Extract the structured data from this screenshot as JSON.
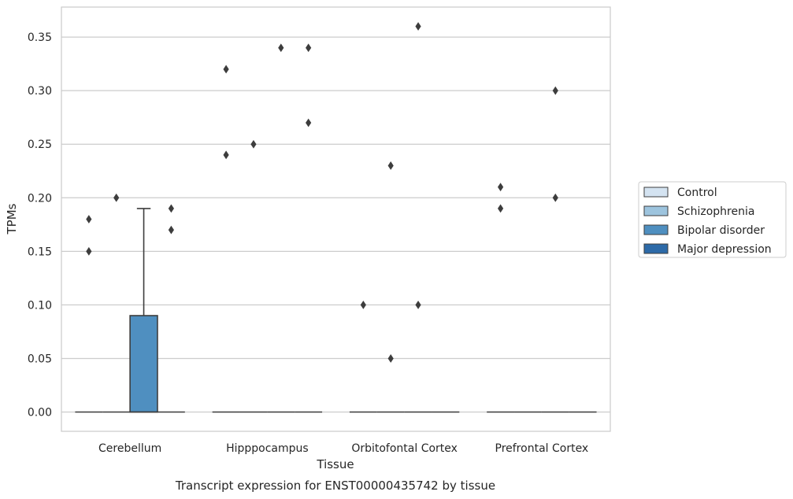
{
  "caption": "Transcript expression for ENST00000435742 by tissue",
  "chart_data": {
    "type": "box",
    "title": "",
    "xlabel": "Tissue",
    "ylabel": "TPMs",
    "ylim": [
      -0.018,
      0.378
    ],
    "yticks": [
      0.0,
      0.05,
      0.1,
      0.15,
      0.2,
      0.25,
      0.3,
      0.35
    ],
    "ytick_labels": [
      "0.00",
      "0.05",
      "0.10",
      "0.15",
      "0.20",
      "0.25",
      "0.30",
      "0.35"
    ],
    "grid": true,
    "legend_position": "right",
    "categories": [
      "Cerebellum",
      "Hipppocampus",
      "Orbitofontal Cortex",
      "Prefrontal Cortex"
    ],
    "series": [
      {
        "name": "Control",
        "color": "#d4e3f1",
        "boxes": [
          {
            "category": "Cerebellum",
            "q1": 0,
            "median": 0,
            "q3": 0,
            "whisker_low": 0,
            "whisker_high": 0,
            "outliers": [
              0.15,
              0.18
            ]
          },
          {
            "category": "Hipppocampus",
            "q1": 0,
            "median": 0,
            "q3": 0,
            "whisker_low": 0,
            "whisker_high": 0,
            "outliers": [
              0.24,
              0.32
            ]
          },
          {
            "category": "Orbitofontal Cortex",
            "q1": 0,
            "median": 0,
            "q3": 0,
            "whisker_low": 0,
            "whisker_high": 0,
            "outliers": [
              0.1
            ]
          },
          {
            "category": "Prefrontal Cortex",
            "q1": 0,
            "median": 0,
            "q3": 0,
            "whisker_low": 0,
            "whisker_high": 0,
            "outliers": [
              0.19,
              0.21
            ]
          }
        ]
      },
      {
        "name": "Schizophrenia",
        "color": "#9dc4de",
        "boxes": [
          {
            "category": "Cerebellum",
            "q1": 0,
            "median": 0,
            "q3": 0,
            "whisker_low": 0,
            "whisker_high": 0,
            "outliers": [
              0.2
            ]
          },
          {
            "category": "Hipppocampus",
            "q1": 0,
            "median": 0,
            "q3": 0,
            "whisker_low": 0,
            "whisker_high": 0,
            "outliers": [
              0.25
            ]
          },
          {
            "category": "Orbitofontal Cortex",
            "q1": 0,
            "median": 0,
            "q3": 0,
            "whisker_low": 0,
            "whisker_high": 0,
            "outliers": [
              0.05,
              0.23
            ]
          },
          {
            "category": "Prefrontal Cortex",
            "q1": 0,
            "median": 0,
            "q3": 0,
            "whisker_low": 0,
            "whisker_high": 0,
            "outliers": []
          }
        ]
      },
      {
        "name": "Bipolar disorder",
        "color": "#4f8fc0",
        "boxes": [
          {
            "category": "Cerebellum",
            "q1": 0,
            "median": 0,
            "q3": 0.09,
            "whisker_low": 0,
            "whisker_high": 0.19,
            "outliers": []
          },
          {
            "category": "Hipppocampus",
            "q1": 0,
            "median": 0,
            "q3": 0,
            "whisker_low": 0,
            "whisker_high": 0,
            "outliers": [
              0.34
            ]
          },
          {
            "category": "Orbitofontal Cortex",
            "q1": 0,
            "median": 0,
            "q3": 0,
            "whisker_low": 0,
            "whisker_high": 0,
            "outliers": [
              0.1,
              0.36
            ]
          },
          {
            "category": "Prefrontal Cortex",
            "q1": 0,
            "median": 0,
            "q3": 0,
            "whisker_low": 0,
            "whisker_high": 0,
            "outliers": [
              0.2,
              0.3
            ]
          }
        ]
      },
      {
        "name": "Major depression",
        "color": "#2d6aa8",
        "boxes": [
          {
            "category": "Cerebellum",
            "q1": 0,
            "median": 0,
            "q3": 0,
            "whisker_low": 0,
            "whisker_high": 0,
            "outliers": [
              0.17,
              0.19
            ]
          },
          {
            "category": "Hipppocampus",
            "q1": 0,
            "median": 0,
            "q3": 0,
            "whisker_low": 0,
            "whisker_high": 0,
            "outliers": [
              0.27,
              0.34
            ]
          },
          {
            "category": "Orbitofontal Cortex",
            "q1": 0,
            "median": 0,
            "q3": 0,
            "whisker_low": 0,
            "whisker_high": 0,
            "outliers": []
          },
          {
            "category": "Prefrontal Cortex",
            "q1": 0,
            "median": 0,
            "q3": 0,
            "whisker_low": 0,
            "whisker_high": 0,
            "outliers": []
          }
        ]
      }
    ]
  }
}
